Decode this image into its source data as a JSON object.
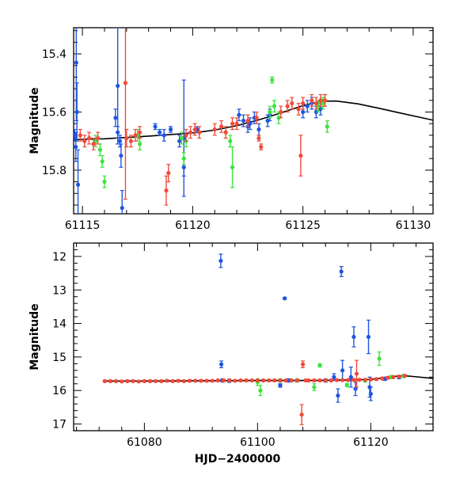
{
  "chart_data": [
    {
      "type": "scatter",
      "panel": "top",
      "title": "",
      "xlabel": "",
      "ylabel": "Magnitude",
      "xlim": [
        61114.6,
        61130.9
      ],
      "ylim": [
        15.95,
        15.31
      ],
      "y_inverted": true,
      "xticks": [
        61115,
        61120,
        61125,
        61130
      ],
      "xtick_labels": [
        "61115",
        "61120",
        "61125",
        "61130"
      ],
      "yticks": [
        15.4,
        15.6,
        15.8
      ],
      "ytick_labels": [
        "15.4",
        "15.6",
        "15.8"
      ],
      "colors": {
        "blue": "#1f55e0",
        "green": "#3de43d",
        "red": "#f04a3a",
        "model": "#000000"
      },
      "model_curve": {
        "name": "model",
        "x": [
          61114.6,
          61116,
          61118,
          61120,
          61121,
          61122,
          61123,
          61124,
          61125,
          61125.8,
          61126.5,
          61127.5,
          61128.5,
          61129.5,
          61130.9
        ],
        "y": [
          15.695,
          15.692,
          15.683,
          15.672,
          15.662,
          15.647,
          15.627,
          15.603,
          15.578,
          15.563,
          15.562,
          15.572,
          15.588,
          15.605,
          15.628
        ]
      },
      "series": [
        {
          "name": "blue",
          "color": "#1f55e0",
          "points": [
            [
              61114.65,
              15.68,
              0.02
            ],
            [
              61114.7,
              15.72,
              0.05
            ],
            [
              61114.75,
              15.6,
              0.1
            ],
            [
              61114.8,
              15.85,
              0.12
            ],
            [
              61114.72,
              15.43,
              0.2
            ],
            [
              61116.5,
              15.62,
              0.03
            ],
            [
              61116.6,
              15.67,
              0.02
            ],
            [
              61116.7,
              15.7,
              0.02
            ],
            [
              61116.75,
              15.75,
              0.04
            ],
            [
              61116.8,
              15.93,
              0.06
            ],
            [
              61116.6,
              15.51,
              0.2
            ],
            [
              61118.3,
              15.65,
              0.01
            ],
            [
              61118.5,
              15.67,
              0.01
            ],
            [
              61118.7,
              15.68,
              0.02
            ],
            [
              61119.0,
              15.66,
              0.01
            ],
            [
              61119.4,
              15.7,
              0.02
            ],
            [
              61119.6,
              15.79,
              0.03
            ],
            [
              61119.6,
              15.69,
              0.2
            ],
            [
              61120.2,
              15.66,
              0.01
            ],
            [
              61122.1,
              15.61,
              0.02
            ],
            [
              61122.3,
              15.63,
              0.02
            ],
            [
              61122.5,
              15.65,
              0.02
            ],
            [
              61122.6,
              15.64,
              0.02
            ],
            [
              61122.8,
              15.62,
              0.02
            ],
            [
              61123.0,
              15.66,
              0.02
            ],
            [
              61123.4,
              15.63,
              0.02
            ],
            [
              61123.5,
              15.61,
              0.02
            ],
            [
              61125.0,
              15.6,
              0.02
            ],
            [
              61125.2,
              15.58,
              0.02
            ],
            [
              61125.4,
              15.57,
              0.02
            ],
            [
              61125.6,
              15.6,
              0.02
            ],
            [
              61125.8,
              15.59,
              0.02
            ]
          ]
        },
        {
          "name": "green",
          "color": "#3de43d",
          "points": [
            [
              61115.6,
              15.7,
              0.02
            ],
            [
              61115.8,
              15.73,
              0.02
            ],
            [
              61115.9,
              15.77,
              0.02
            ],
            [
              61116.0,
              15.84,
              0.02
            ],
            [
              61117.5,
              15.68,
              0.02
            ],
            [
              61117.6,
              15.71,
              0.02
            ],
            [
              61119.5,
              15.69,
              0.02
            ],
            [
              61119.6,
              15.76,
              0.02
            ],
            [
              61119.7,
              15.7,
              0.02
            ],
            [
              61121.5,
              15.67,
              0.02
            ],
            [
              61121.7,
              15.7,
              0.02
            ],
            [
              61121.8,
              15.79,
              0.07
            ],
            [
              61123.5,
              15.6,
              0.02
            ],
            [
              61123.7,
              15.58,
              0.02
            ],
            [
              61123.9,
              15.62,
              0.02
            ],
            [
              61123.6,
              15.49,
              0.01
            ],
            [
              61125.7,
              15.58,
              0.02
            ],
            [
              61125.9,
              15.57,
              0.02
            ],
            [
              61126.0,
              15.56,
              0.02
            ],
            [
              61126.1,
              15.65,
              0.02
            ]
          ]
        },
        {
          "name": "red",
          "color": "#f04a3a",
          "points": [
            [
              61114.9,
              15.68,
              0.02
            ],
            [
              61115.1,
              15.7,
              0.02
            ],
            [
              61115.3,
              15.69,
              0.02
            ],
            [
              61115.5,
              15.71,
              0.02
            ],
            [
              61115.7,
              15.69,
              0.02
            ],
            [
              61117.0,
              15.69,
              0.03
            ],
            [
              61117.2,
              15.7,
              0.02
            ],
            [
              61117.4,
              15.68,
              0.02
            ],
            [
              61117.6,
              15.67,
              0.02
            ],
            [
              61116.95,
              15.5,
              0.4
            ],
            [
              61119.7,
              15.68,
              0.02
            ],
            [
              61119.9,
              15.67,
              0.02
            ],
            [
              61120.1,
              15.66,
              0.02
            ],
            [
              61120.3,
              15.67,
              0.02
            ],
            [
              61118.8,
              15.87,
              0.05
            ],
            [
              61118.9,
              15.81,
              0.03
            ],
            [
              61121.0,
              15.66,
              0.02
            ],
            [
              61121.3,
              15.65,
              0.02
            ],
            [
              61121.5,
              15.67,
              0.02
            ],
            [
              61121.8,
              15.64,
              0.02
            ],
            [
              61122.0,
              15.64,
              0.02
            ],
            [
              61122.5,
              15.63,
              0.02
            ],
            [
              61122.9,
              15.62,
              0.02
            ],
            [
              61123.0,
              15.69,
              0.01
            ],
            [
              61123.1,
              15.72,
              0.01
            ],
            [
              61124.0,
              15.6,
              0.02
            ],
            [
              61124.3,
              15.58,
              0.02
            ],
            [
              61124.5,
              15.57,
              0.02
            ],
            [
              61124.8,
              15.59,
              0.02
            ],
            [
              61125.0,
              15.57,
              0.02
            ],
            [
              61124.9,
              15.75,
              0.07
            ],
            [
              61125.4,
              15.56,
              0.02
            ],
            [
              61125.6,
              15.57,
              0.02
            ],
            [
              61125.8,
              15.56,
              0.02
            ],
            [
              61126.0,
              15.56,
              0.02
            ]
          ]
        }
      ]
    },
    {
      "type": "scatter",
      "panel": "bottom",
      "title": "",
      "xlabel": "HJD−2400000",
      "ylabel": "Magnitude",
      "xlim": [
        61067.5,
        61131.0
      ],
      "ylim": [
        17.2,
        11.6
      ],
      "y_inverted": true,
      "xticks": [
        61080,
        61100,
        61120
      ],
      "xtick_labels": [
        "61080",
        "61100",
        "61120"
      ],
      "yticks": [
        12,
        13,
        14,
        15,
        16,
        17
      ],
      "ytick_labels": [
        "12",
        "13",
        "14",
        "15",
        "16",
        "17"
      ],
      "colors": {
        "blue": "#1f55e0",
        "green": "#3de43d",
        "red": "#f04a3a",
        "model": "#000000"
      },
      "model_curve": {
        "name": "model",
        "x": [
          61073,
          61080,
          61090,
          61100,
          61110,
          61115,
          61120,
          61124,
          61126,
          61128,
          61131
        ],
        "y": [
          15.72,
          15.72,
          15.71,
          15.7,
          15.7,
          15.69,
          15.67,
          15.58,
          15.56,
          15.59,
          15.64
        ]
      },
      "series": [
        {
          "name": "blue",
          "color": "#1f55e0",
          "points": [
            [
              61093.5,
              12.13,
              0.2
            ],
            [
              61093.6,
              15.22,
              0.1
            ],
            [
              61093.8,
              15.7,
              0.05
            ],
            [
              61095.0,
              15.71,
              0.05
            ],
            [
              61104.0,
              15.85,
              0.05
            ],
            [
              61104.8,
              13.25,
              0.03
            ],
            [
              61105.5,
              15.7,
              0.05
            ],
            [
              61112.0,
              15.7,
              0.05
            ],
            [
              61113.5,
              15.6,
              0.1
            ],
            [
              61114.2,
              16.15,
              0.2
            ],
            [
              61114.8,
              12.45,
              0.15
            ],
            [
              61115.0,
              15.4,
              0.3
            ],
            [
              61116.5,
              15.6,
              0.3
            ],
            [
              61117.0,
              14.4,
              0.3
            ],
            [
              61117.3,
              15.95,
              0.2
            ],
            [
              61119.6,
              14.4,
              0.5
            ],
            [
              61119.8,
              15.9,
              0.3
            ],
            [
              61120.0,
              16.1,
              0.2
            ],
            [
              61122.5,
              15.65,
              0.05
            ],
            [
              61125.0,
              15.6,
              0.05
            ]
          ]
        },
        {
          "name": "green",
          "color": "#3de43d",
          "points": [
            [
              61100.0,
              15.75,
              0.1
            ],
            [
              61100.5,
              16.0,
              0.15
            ],
            [
              61104.0,
              15.7,
              0.05
            ],
            [
              61107.0,
              15.7,
              0.05
            ],
            [
              61110.0,
              15.9,
              0.1
            ],
            [
              61111.0,
              15.25,
              0.05
            ],
            [
              61115.8,
              15.84,
              0.05
            ],
            [
              61119.0,
              15.7,
              0.05
            ],
            [
              61121.5,
              15.05,
              0.2
            ],
            [
              61123.6,
              15.6,
              0.05
            ],
            [
              61125.8,
              15.57,
              0.05
            ]
          ]
        },
        {
          "name": "red",
          "color": "#f04a3a",
          "points": [
            [
              61073,
              15.72,
              0.03
            ],
            [
              61074,
              15.72,
              0.03
            ],
            [
              61075,
              15.72,
              0.03
            ],
            [
              61076,
              15.73,
              0.03
            ],
            [
              61077,
              15.72,
              0.03
            ],
            [
              61078,
              15.72,
              0.03
            ],
            [
              61079,
              15.73,
              0.03
            ],
            [
              61080,
              15.72,
              0.03
            ],
            [
              61081,
              15.72,
              0.03
            ],
            [
              61082,
              15.72,
              0.03
            ],
            [
              61083,
              15.72,
              0.03
            ],
            [
              61084,
              15.71,
              0.03
            ],
            [
              61085,
              15.72,
              0.03
            ],
            [
              61086,
              15.71,
              0.03
            ],
            [
              61087,
              15.72,
              0.03
            ],
            [
              61088,
              15.71,
              0.03
            ],
            [
              61089,
              15.71,
              0.03
            ],
            [
              61090,
              15.71,
              0.03
            ],
            [
              61091,
              15.71,
              0.03
            ],
            [
              61092,
              15.71,
              0.03
            ],
            [
              61093,
              15.7,
              0.03
            ],
            [
              61094,
              15.7,
              0.03
            ],
            [
              61095,
              15.7,
              0.03
            ],
            [
              61096,
              15.71,
              0.03
            ],
            [
              61097,
              15.7,
              0.03
            ],
            [
              61098,
              15.7,
              0.03
            ],
            [
              61099,
              15.7,
              0.03
            ],
            [
              61100,
              15.7,
              0.03
            ],
            [
              61101,
              15.7,
              0.03
            ],
            [
              61102,
              15.7,
              0.03
            ],
            [
              61103,
              15.7,
              0.03
            ],
            [
              61104,
              15.7,
              0.03
            ],
            [
              61105,
              15.7,
              0.03
            ],
            [
              61106,
              15.7,
              0.03
            ],
            [
              61107,
              15.7,
              0.03
            ],
            [
              61107.8,
              16.72,
              0.3
            ],
            [
              61108,
              15.22,
              0.1
            ],
            [
              61108.5,
              15.7,
              0.03
            ],
            [
              61109,
              15.7,
              0.03
            ],
            [
              61110,
              15.7,
              0.03
            ],
            [
              61111,
              15.7,
              0.03
            ],
            [
              61112,
              15.7,
              0.03
            ],
            [
              61113,
              15.7,
              0.03
            ],
            [
              61114,
              15.69,
              0.03
            ],
            [
              61115,
              15.69,
              0.03
            ],
            [
              61116,
              15.69,
              0.03
            ],
            [
              61117,
              15.68,
              0.03
            ],
            [
              61117.5,
              15.5,
              0.4
            ],
            [
              61118,
              15.68,
              0.03
            ],
            [
              61119,
              15.68,
              0.03
            ],
            [
              61120,
              15.67,
              0.03
            ],
            [
              61121,
              15.66,
              0.03
            ],
            [
              61122,
              15.64,
              0.03
            ],
            [
              61123,
              15.62,
              0.03
            ],
            [
              61124,
              15.6,
              0.03
            ],
            [
              61125,
              15.58,
              0.03
            ],
            [
              61126,
              15.56,
              0.03
            ]
          ]
        }
      ]
    }
  ]
}
